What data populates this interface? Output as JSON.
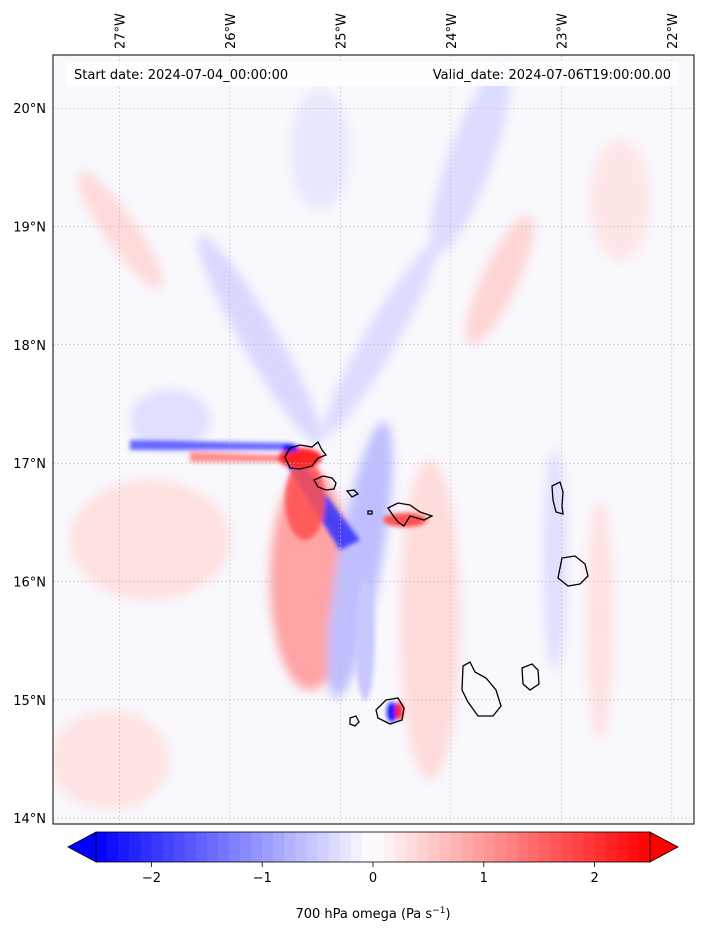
{
  "map": {
    "start_label": "Start date: 2024-07-04_00:00:00",
    "valid_label": "Valid_date: 2024-07-06T19:00:00.00",
    "lon_labels": [
      "27°W",
      "26°W",
      "25°W",
      "24°W",
      "23°W",
      "22°W"
    ],
    "lat_labels": [
      "20°N",
      "19°N",
      "18°N",
      "17°N",
      "16°N",
      "15°N",
      "14°N"
    ],
    "lon_range": [
      -27.6,
      -21.8
    ],
    "lat_range": [
      13.95,
      20.45
    ],
    "lon_ticks": [
      -27,
      -26,
      -25,
      -24,
      -23,
      -22
    ],
    "lat_ticks": [
      20,
      19,
      18,
      17,
      16,
      15,
      14
    ]
  },
  "colorbar": {
    "label_main": "700 hPa omega (Pa s",
    "label_sup": "−1",
    "label_end": ")",
    "tick_labels": [
      "−2",
      "−1",
      "0",
      "1",
      "2"
    ],
    "ticks": [
      -2,
      -1,
      0,
      1,
      2
    ],
    "vmin": -2.5,
    "vmax": 2.5,
    "colors": {
      "negative": "#0000ff",
      "zero": "#ffffff",
      "positive": "#ff0000"
    }
  }
}
